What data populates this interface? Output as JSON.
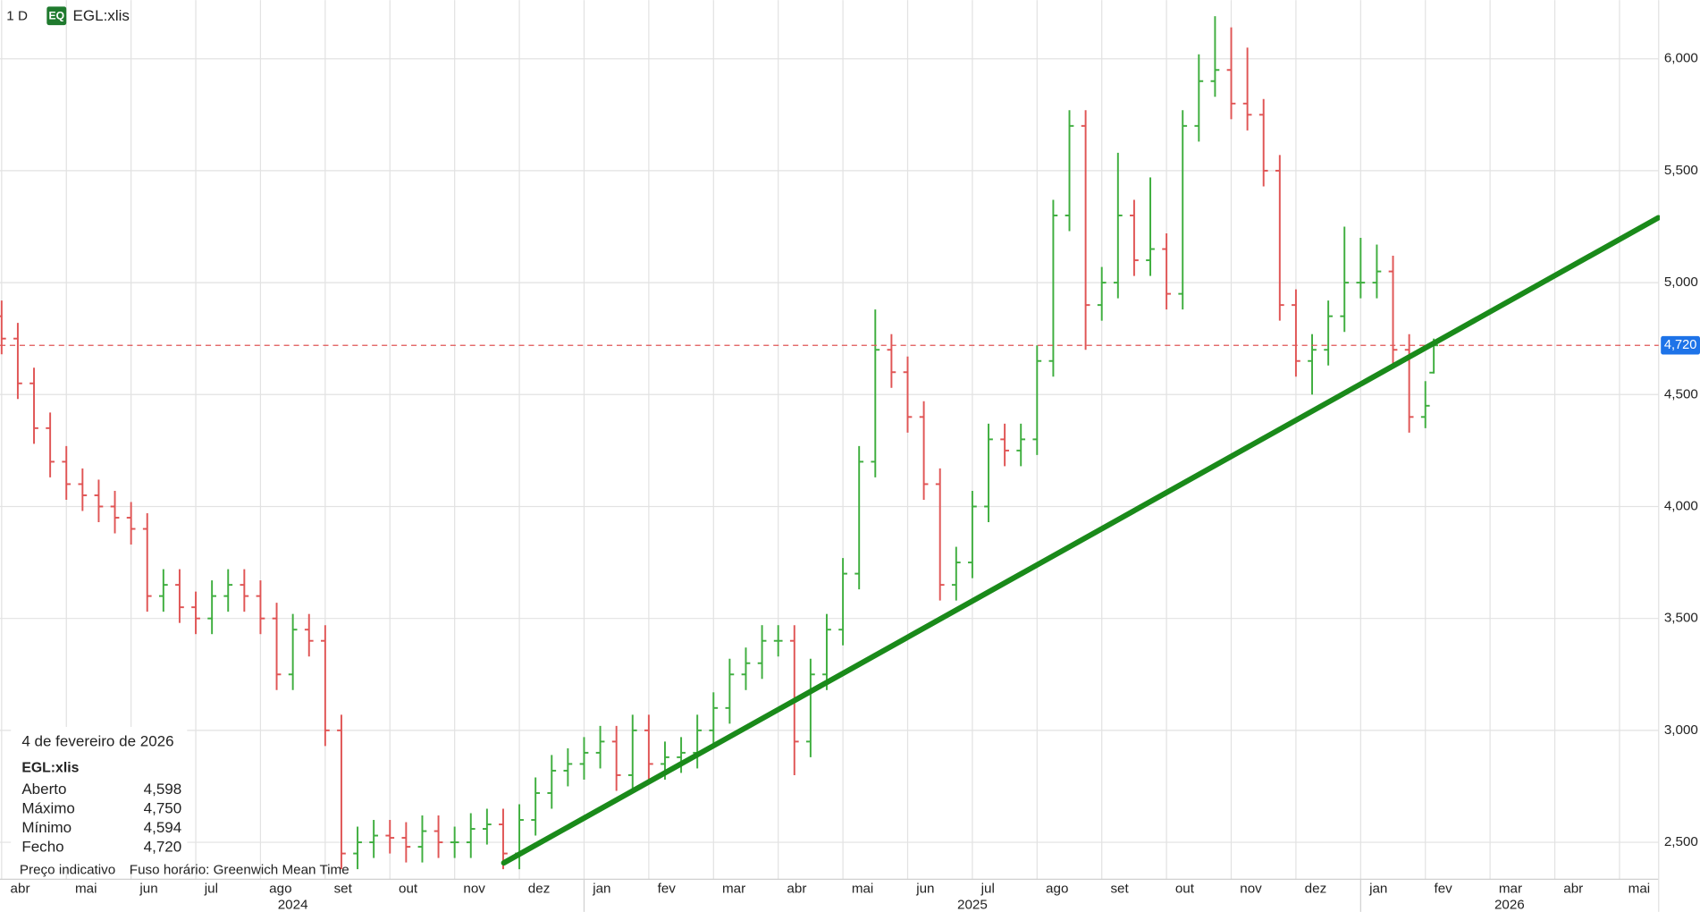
{
  "header": {
    "interval": "1 D",
    "badge": "EQ",
    "symbol": "EGL:xlis"
  },
  "chart_data": {
    "type": "ohlc",
    "up_color": "#3fae3f",
    "down_color": "#e05555",
    "x": [
      0,
      0.25,
      0.5,
      0.75,
      1,
      1.25,
      1.5,
      1.75,
      2,
      2.25,
      2.5,
      2.75,
      3,
      3.25,
      3.5,
      3.75,
      4,
      4.25,
      4.5,
      4.75,
      5,
      5.25,
      5.5,
      5.75,
      6,
      6.25,
      6.5,
      6.75,
      7,
      7.25,
      7.5,
      7.75,
      8,
      8.25,
      8.5,
      8.75,
      9,
      9.25,
      9.5,
      9.75,
      10,
      10.25,
      10.5,
      10.75,
      11,
      11.25,
      11.5,
      11.75,
      12,
      12.25,
      12.5,
      12.75,
      13,
      13.25,
      13.5,
      13.75,
      14,
      14.25,
      14.5,
      14.75,
      15,
      15.25,
      15.5,
      15.75,
      16,
      16.25,
      16.5,
      16.75,
      17,
      17.25,
      17.5,
      17.75,
      18,
      18.25,
      18.5,
      18.75,
      19,
      19.25,
      19.5,
      19.75,
      20,
      20.25,
      20.5,
      20.75,
      21,
      21.25,
      21.5,
      21.75,
      22,
      22.13
    ],
    "open": [
      4850,
      4750,
      4550,
      4350,
      4200,
      4100,
      4050,
      4000,
      3950,
      3900,
      3600,
      3650,
      3550,
      3500,
      3600,
      3650,
      3600,
      3500,
      3250,
      3450,
      3400,
      3000,
      2450,
      2500,
      2530,
      2520,
      2480,
      2550,
      2500,
      2500,
      2560,
      2580,
      2450,
      2600,
      2720,
      2820,
      2850,
      2900,
      2950,
      2800,
      3000,
      2850,
      2880,
      2900,
      3000,
      3100,
      3250,
      3300,
      3400,
      3400,
      2950,
      3250,
      3450,
      3700,
      4200,
      4700,
      4600,
      4400,
      4100,
      3650,
      3750,
      4000,
      4300,
      4250,
      4300,
      4650,
      5300,
      5700,
      4900,
      5000,
      5300,
      5100,
      5150,
      4950,
      5700,
      5900,
      5950,
      5800,
      5750,
      5500,
      4900,
      4650,
      4700,
      4850,
      5000,
      5000,
      5050,
      4700,
      4400,
      4598
    ],
    "high": [
      4920,
      4820,
      4620,
      4420,
      4270,
      4170,
      4120,
      4070,
      4020,
      3970,
      3720,
      3720,
      3620,
      3670,
      3720,
      3720,
      3670,
      3570,
      3520,
      3520,
      3470,
      3070,
      2570,
      2600,
      2600,
      2590,
      2620,
      2620,
      2570,
      2630,
      2650,
      2650,
      2670,
      2790,
      2890,
      2920,
      2970,
      3020,
      3020,
      3070,
      3070,
      2950,
      2970,
      3070,
      3170,
      3320,
      3370,
      3470,
      3470,
      3470,
      3320,
      3520,
      3770,
      4270,
      4880,
      4770,
      4670,
      4470,
      4170,
      3820,
      4070,
      4370,
      4370,
      4370,
      4720,
      5370,
      5770,
      5770,
      5070,
      5580,
      5370,
      5470,
      5220,
      5770,
      6020,
      6190,
      6140,
      6050,
      5820,
      5570,
      4970,
      4770,
      4920,
      5250,
      5200,
      5170,
      5120,
      4770,
      4560,
      4750
    ],
    "low": [
      4680,
      4480,
      4280,
      4130,
      4030,
      3980,
      3930,
      3880,
      3830,
      3530,
      3530,
      3480,
      3430,
      3430,
      3530,
      3530,
      3430,
      3180,
      3180,
      3330,
      2930,
      2380,
      2380,
      2430,
      2450,
      2410,
      2410,
      2430,
      2430,
      2430,
      2490,
      2380,
      2380,
      2530,
      2650,
      2750,
      2780,
      2830,
      2730,
      2730,
      2780,
      2780,
      2810,
      2830,
      2930,
      3030,
      3180,
      3230,
      3330,
      2800,
      2880,
      3180,
      3380,
      3630,
      4130,
      4530,
      4330,
      4030,
      3580,
      3580,
      3680,
      3930,
      4180,
      4180,
      4230,
      4580,
      5230,
      4700,
      4830,
      4930,
      5030,
      5030,
      4880,
      4880,
      5630,
      5830,
      5730,
      5680,
      5430,
      4830,
      4580,
      4500,
      4630,
      4780,
      4930,
      4930,
      4630,
      4330,
      4350,
      4594
    ],
    "close": [
      4750,
      4550,
      4350,
      4200,
      4100,
      4050,
      4000,
      3950,
      3900,
      3600,
      3650,
      3550,
      3500,
      3600,
      3650,
      3600,
      3500,
      3250,
      3450,
      3400,
      3000,
      2450,
      2500,
      2530,
      2520,
      2480,
      2550,
      2500,
      2500,
      2560,
      2580,
      2450,
      2600,
      2720,
      2820,
      2850,
      2900,
      2950,
      2800,
      3000,
      2850,
      2880,
      2900,
      3000,
      3100,
      3250,
      3300,
      3400,
      3400,
      2950,
      3250,
      3450,
      3700,
      4200,
      4700,
      4600,
      4400,
      4100,
      3650,
      3750,
      4000,
      4300,
      4250,
      4300,
      4650,
      5300,
      5700,
      4900,
      5000,
      5300,
      5100,
      5150,
      4950,
      5700,
      5900,
      5950,
      5800,
      5750,
      5500,
      4900,
      4650,
      4700,
      4850,
      5000,
      5000,
      5050,
      4700,
      4400,
      4450,
      4720
    ],
    "xlim": [
      0,
      25.6
    ],
    "ylim": [
      2335,
      6262
    ],
    "yticks": [
      {
        "value": 2500,
        "label": "2,500"
      },
      {
        "value": 3000,
        "label": "3,000"
      },
      {
        "value": 3500,
        "label": "3,500"
      },
      {
        "value": 4000,
        "label": "4,000"
      },
      {
        "value": 4500,
        "label": "4,500"
      },
      {
        "value": 5000,
        "label": "5,000"
      },
      {
        "value": 5500,
        "label": "5,500"
      },
      {
        "value": 6000,
        "label": "6,000"
      }
    ],
    "months": [
      "abr",
      "mai",
      "jun",
      "jul",
      "ago",
      "set",
      "out",
      "nov",
      "dez",
      "jan",
      "fev",
      "mar",
      "abr",
      "mai",
      "jun",
      "jul",
      "ago",
      "set",
      "out",
      "nov",
      "dez",
      "jan",
      "fev",
      "mar",
      "abr",
      "mai"
    ],
    "years": [
      {
        "label": "2024",
        "start": 0,
        "end": 9
      },
      {
        "label": "2025",
        "start": 9,
        "end": 21
      },
      {
        "label": "2026",
        "start": 21,
        "end": 25.6
      }
    ],
    "grid": true,
    "last_price": {
      "value": 4720,
      "label": "4,720",
      "line_color": "#e05555",
      "box_color": "#1e73e8"
    },
    "trendline": {
      "x": [
        7.76,
        25.6
      ],
      "y": [
        2408,
        5290
      ],
      "color": "#1a8a1a"
    }
  },
  "info": {
    "date": "4 de fevereiro de 2026",
    "symbol": "EGL:xlis",
    "rows": [
      {
        "label": "Aberto",
        "value": "4,598"
      },
      {
        "label": "Máximo",
        "value": "4,750"
      },
      {
        "label": "Mínimo",
        "value": "4,594"
      },
      {
        "label": "Fecho",
        "value": "4,720"
      }
    ]
  },
  "footer": {
    "note": "Preço indicativo",
    "timezone": "Fuso horário: Greenwich Mean Time"
  }
}
